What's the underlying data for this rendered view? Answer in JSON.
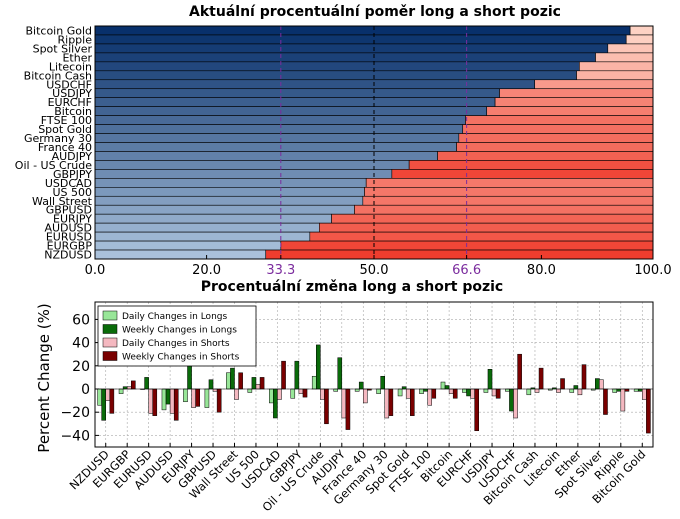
{
  "chart_data": [
    {
      "type": "bar",
      "orientation": "horizontal-stacked",
      "title": "Aktuální procentuální poměr long a short pozic",
      "categories": [
        "Bitcoin Gold",
        "Ripple",
        "Spot Silver",
        "Ether",
        "Litecoin",
        "Bitcoin Cash",
        "USDCHF",
        "USDJPY",
        "EURCHF",
        "Bitcoin",
        "FTSE 100",
        "Spot Gold",
        "Germany 30",
        "France 40",
        "AUDJPY",
        "Oil - US Crude",
        "GBPJPY",
        "USDCAD",
        "US 500",
        "Wall Street",
        "GBPUSD",
        "EURJPY",
        "AUDUSD",
        "EURUSD",
        "EURGBP",
        "NZDUSD"
      ],
      "long_values": [
        95.9,
        95.2,
        91.9,
        89.7,
        86.8,
        86.3,
        78.8,
        72.5,
        71.7,
        70.2,
        66.4,
        65.9,
        65.2,
        64.8,
        61.4,
        56.3,
        53.2,
        48.6,
        48.3,
        48.0,
        46.5,
        42.4,
        40.2,
        38.5,
        33.3,
        30.6
      ],
      "xlim": [
        0,
        100
      ],
      "xticks": [
        "0.0",
        "20.0",
        "33.3",
        "50.0",
        "66.6",
        "80.0",
        "100.0"
      ],
      "reference_lines": [
        33.3,
        50.0,
        66.6
      ],
      "colors": {
        "long": "#08306b",
        "short": "#67000d"
      }
    },
    {
      "type": "bar",
      "title": "Procentuální změna long a short pozic",
      "ylabel": "Percent Change (%)",
      "ylim": [
        -50,
        75
      ],
      "yticks": [
        "−40",
        "−20",
        "0",
        "20",
        "40",
        "60"
      ],
      "grid": true,
      "legend": "top-left",
      "categories": [
        "NZDUSD",
        "EURGBP",
        "EURUSD",
        "AUDUSD",
        "EURJPY",
        "GBPUSD",
        "Wall Street",
        "US 500",
        "USDCAD",
        "GBPJPY",
        "Oil - US Crude",
        "AUDJPY",
        "France 40",
        "Germany 30",
        "Spot Gold",
        "FTSE 100",
        "Bitcoin",
        "EURCHF",
        "USDJPY",
        "USDCHF",
        "Bitcoin Cash",
        "Litecoin",
        "Ether",
        "Spot Silver",
        "Ripple",
        "Bitcoin Gold"
      ],
      "series": [
        {
          "name": "Daily Changes in Longs",
          "color": "#98e698",
          "values": [
            -14,
            -4,
            0,
            -18,
            -11,
            -16,
            14,
            -3,
            -12,
            -8,
            11,
            -2,
            -2,
            -4,
            -6,
            -4,
            6,
            -3,
            -3,
            -2,
            -5,
            -1,
            -3,
            -1,
            -3,
            -2
          ]
        },
        {
          "name": "Weekly Changes in Longs",
          "color": "#0a6b0a",
          "values": [
            -27,
            2,
            10,
            -13,
            20,
            8,
            18,
            10,
            -25,
            24,
            38,
            27,
            6,
            11,
            2,
            -2,
            3,
            -6,
            17,
            -19,
            1,
            1,
            3,
            9,
            -2,
            -2
          ]
        },
        {
          "name": "Daily Changes in Shorts",
          "color": "#f4b8c0",
          "values": [
            -10,
            2,
            -21,
            -21,
            -16,
            -2,
            -9,
            4,
            -9,
            -4,
            -9,
            -25,
            -12,
            -25,
            -8,
            -14,
            -4,
            -8,
            -6,
            -25,
            -3,
            -3,
            -5,
            8,
            -19,
            -9
          ]
        },
        {
          "name": "Weekly Changes in Shorts",
          "color": "#7a0000",
          "values": [
            -21,
            7,
            -23,
            -27,
            -15,
            -20,
            14,
            10,
            24,
            -7,
            -30,
            -35,
            -1,
            -23,
            -23,
            -8,
            -8,
            -36,
            -8,
            30,
            18,
            9,
            21,
            -22,
            -2,
            -38
          ]
        }
      ]
    }
  ]
}
